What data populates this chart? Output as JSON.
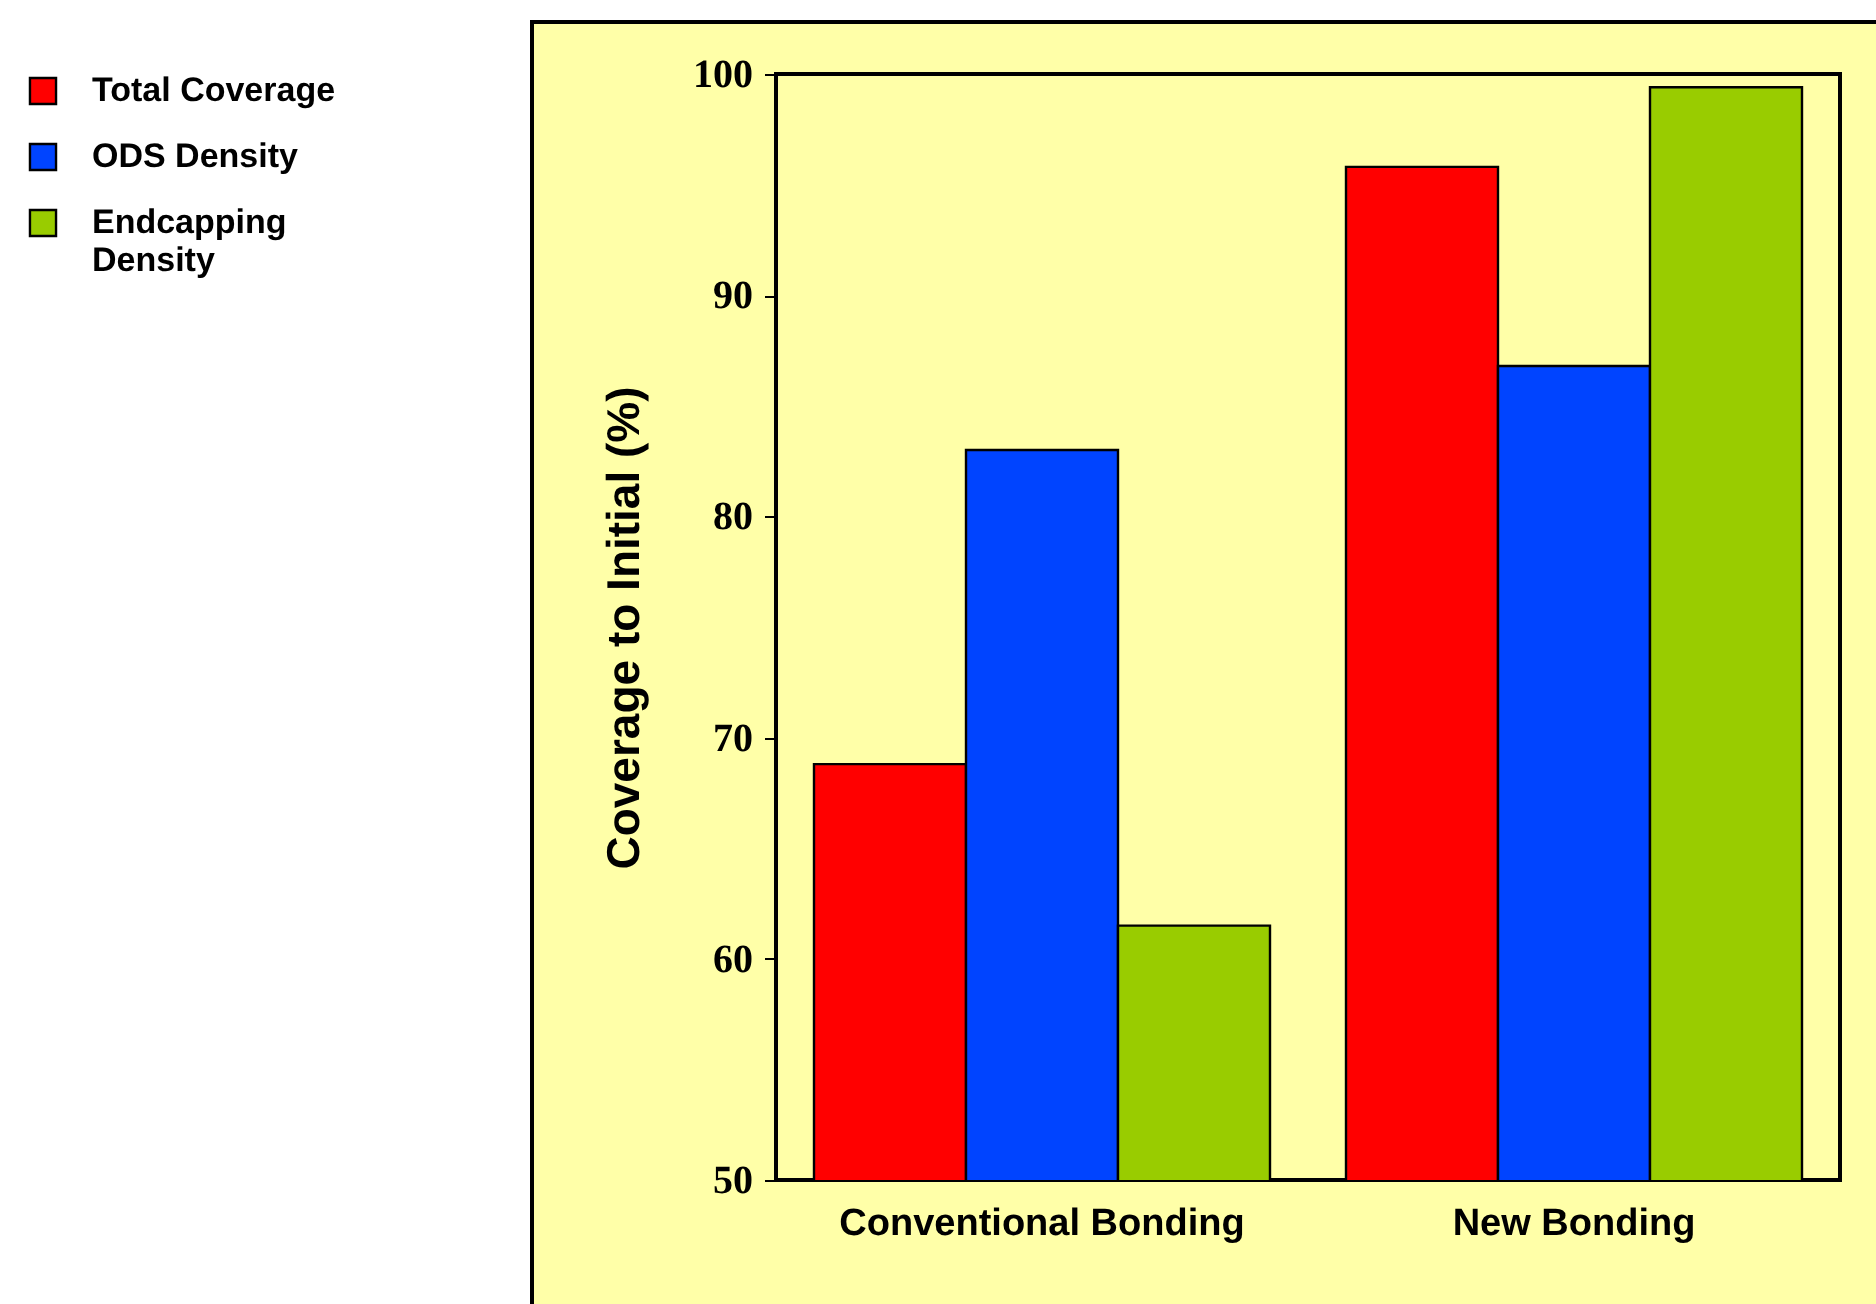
{
  "chart_data": {
    "type": "bar",
    "ylabel": "Coverage to Initial (%)",
    "categories": [
      "Conventional Bonding",
      "New Bonding"
    ],
    "series": [
      {
        "name": "Total Coverage",
        "color": "#ff0000",
        "values": [
          68.8,
          95.8
        ]
      },
      {
        "name": "ODS Density",
        "color": "#0044ff",
        "values": [
          83.0,
          86.8
        ]
      },
      {
        "name": "Endcapping Density",
        "color": "#99cc00",
        "values": [
          61.5,
          99.4
        ]
      }
    ],
    "ylim": [
      50,
      100
    ],
    "yticks": [
      50,
      60,
      70,
      80,
      90,
      100
    ],
    "grid": false,
    "legend": "top left"
  }
}
